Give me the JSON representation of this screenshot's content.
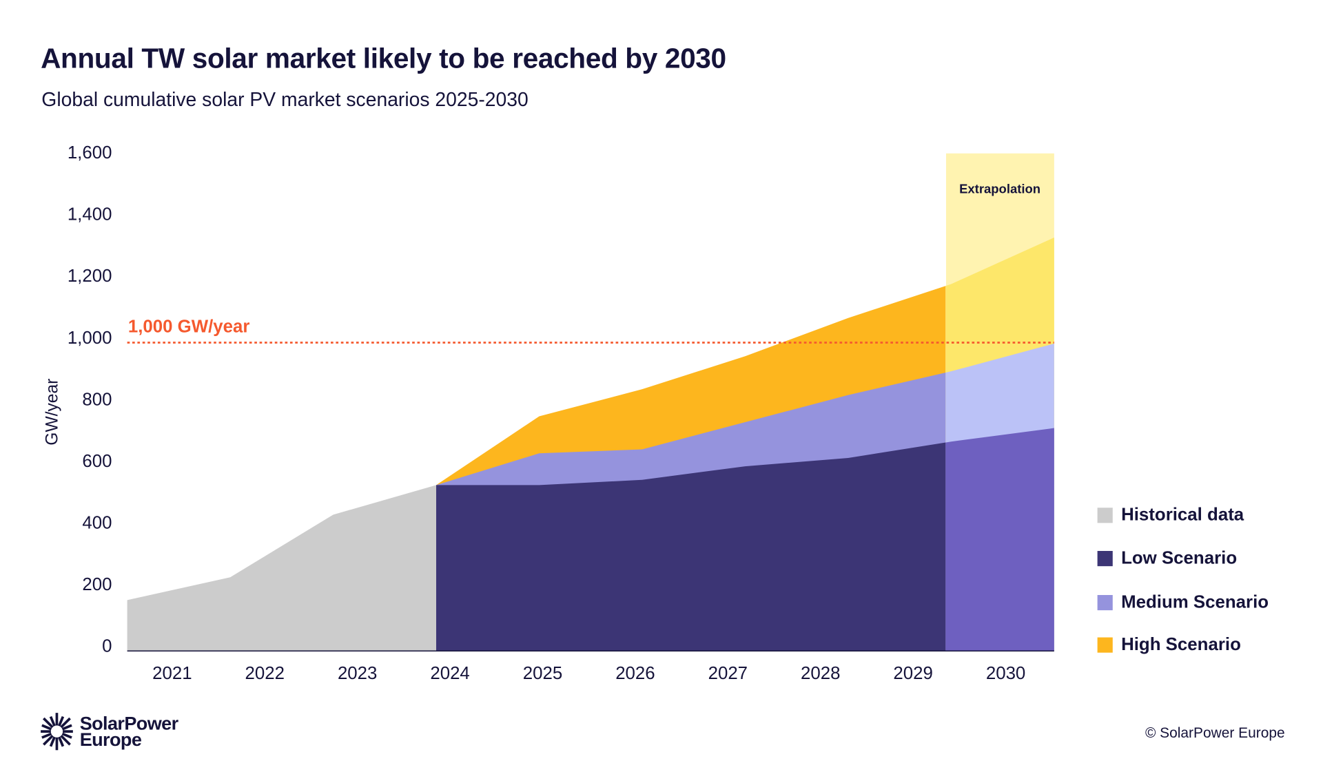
{
  "header": {
    "title": "Annual TW solar market likely to be reached by 2030",
    "subtitle": "Global cumulative solar PV market scenarios 2025-2030"
  },
  "chart_data": {
    "type": "area",
    "title": "Annual TW solar market likely to be reached by 2030",
    "subtitle": "Global cumulative solar PV market scenarios 2025-2030",
    "xlabel": "",
    "ylabel": "GW/year",
    "ylim": [
      0,
      1600
    ],
    "yticks": [
      "0",
      "200",
      "400",
      "600",
      "800",
      "1,000",
      "1,200",
      "1,400",
      "1,600"
    ],
    "ytick_values": [
      0,
      200,
      400,
      600,
      800,
      1000,
      1200,
      1400,
      1600
    ],
    "categories": [
      "2021",
      "2022",
      "2023",
      "2024",
      "2025",
      "2026",
      "2027",
      "2028",
      "2029",
      "2030"
    ],
    "point_index": [
      0,
      1,
      2,
      3,
      4,
      5,
      6,
      7,
      8,
      9
    ],
    "series": [
      {
        "name": "Historical data",
        "color": "#cccccc",
        "values": [
          165,
          239,
          442,
          538,
          null,
          null,
          null,
          null,
          null,
          null
        ]
      },
      {
        "name": "Low Scenario",
        "color": "#3c3575",
        "extrap_color": "#6e60c0",
        "values": [
          null,
          null,
          null,
          538,
          538,
          555,
          599,
          626,
          679,
          723
        ]
      },
      {
        "name": "Medium Scenario",
        "color": "#9593dd",
        "extrap_color": "#bbc2f7",
        "values": [
          null,
          null,
          null,
          538,
          641,
          654,
          742,
          830,
          907,
          997
        ]
      },
      {
        "name": "High Scenario",
        "color": "#fdb61e",
        "extrap_color": "#fde76a",
        "values": [
          null,
          null,
          null,
          538,
          761,
          849,
          956,
          1080,
          1190,
          1341
        ]
      }
    ],
    "reference_line": {
      "value": 1000,
      "label": "1,000 GW/year",
      "color": "#f5592e"
    },
    "extrapolation": {
      "label": "Extrapolation",
      "from_index": 8,
      "color": "#fff3b0"
    },
    "legend_placement": "right",
    "grid": false
  },
  "footer": {
    "logo_text_line1": "SolarPower",
    "logo_text_line2": "Europe",
    "copyright": "© SolarPower Europe"
  }
}
